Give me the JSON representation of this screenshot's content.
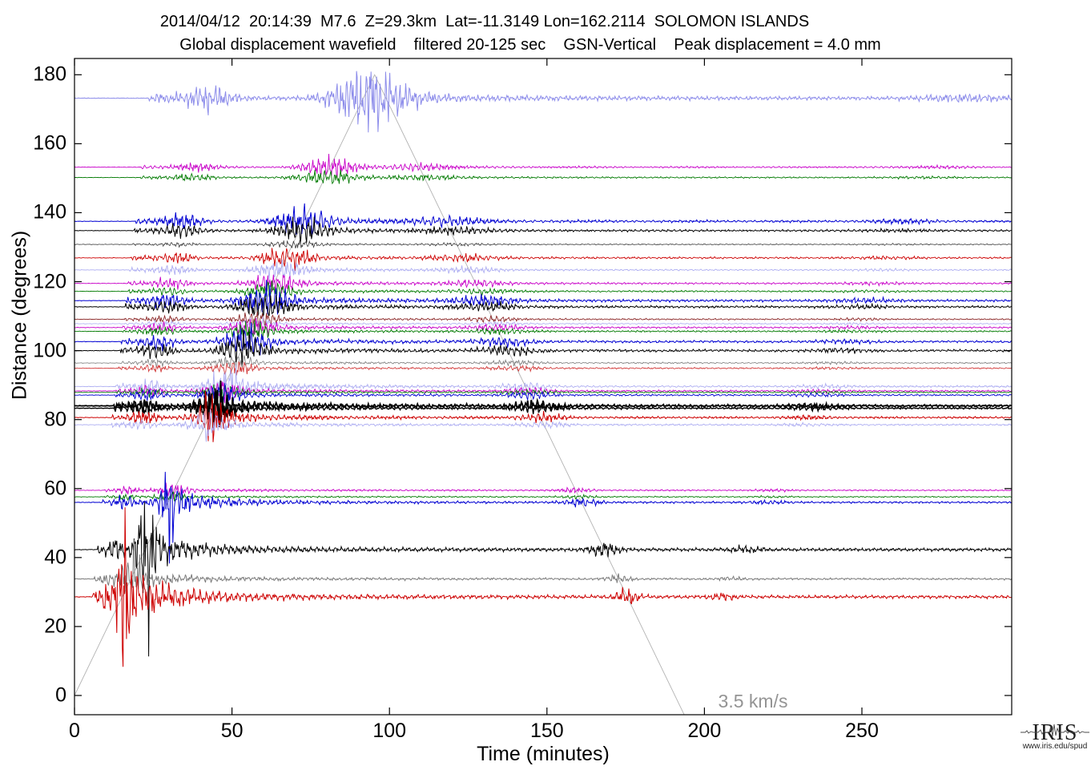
{
  "title": {
    "line1": "2014/04/12  20:14:39  M7.6  Z=29.3km  Lat=-11.3149 Lon=162.2114  SOLOMON ISLANDS",
    "line2": "Global displacement wavefield    filtered 20-125 sec    GSN-Vertical    Peak displacement = 4.0 mm"
  },
  "event": {
    "date": "2014/04/12",
    "time": "20:14:39",
    "magnitude": "M7.6",
    "depth": "Z=29.3km",
    "latitude": "Lat=-11.3149",
    "longitude": "Lon=162.2114",
    "region": "SOLOMON ISLANDS",
    "wavefield": "Global displacement wavefield",
    "filter": "filtered 20-125 sec",
    "component": "GSN-Vertical",
    "peak_displacement": "Peak displacement = 4.0 mm"
  },
  "axes": {
    "x": {
      "label": "Time (minutes)",
      "ticks": [
        0,
        50,
        100,
        150,
        200,
        250
      ],
      "min": 0,
      "max": 297.5
    },
    "y": {
      "label": "Distance (degrees)",
      "ticks": [
        0,
        20,
        40,
        60,
        80,
        100,
        120,
        140,
        160,
        180
      ],
      "min": -5.6,
      "max": 184.7
    }
  },
  "annotations": {
    "moveout_label": "3.5 km/s",
    "moveout_velocity_km_s": 3.5,
    "moveout_color": "#b3b3b3"
  },
  "branding": {
    "logo_text": "IRIS",
    "logo_url_text": "www.iris.edu/spud"
  },
  "chart_data": {
    "type": "line",
    "subtype": "seismic-record-section",
    "title": "Global displacement wavefield, filtered 20-125 sec, GSN-Vertical, Peak displacement = 4.0 mm",
    "xlabel": "Time (minutes)",
    "ylabel": "Distance (degrees)",
    "xlim": [
      0,
      297.5
    ],
    "ylim": [
      -5.6,
      184.7
    ],
    "grid": false,
    "legend": "none",
    "moveout_line": {
      "velocity_km_s": 3.5,
      "label": "3.5 km/s",
      "vertices_time_distance": [
        [
          0,
          0
        ],
        [
          95.3,
          180
        ],
        [
          193.6,
          -5.6
        ]
      ]
    },
    "traces": [
      {
        "distance_deg": 173.2,
        "color": "#8c8cea",
        "amp": 32,
        "lw": 1.0,
        "spike": 0,
        "sw": 0
      },
      {
        "distance_deg": 153.2,
        "color": "#c800c8",
        "amp": 11,
        "lw": 0.9,
        "spike": 0,
        "sw": 0
      },
      {
        "distance_deg": 150.2,
        "color": "#007a00",
        "amp": 9,
        "lw": 0.9,
        "spike": 0,
        "sw": 0
      },
      {
        "distance_deg": 137.5,
        "color": "#0000d2",
        "amp": 18,
        "lw": 1.0,
        "spike": 0,
        "sw": 0
      },
      {
        "distance_deg": 134.8,
        "color": "#000000",
        "amp": 15,
        "lw": 1.0,
        "spike": 0,
        "sw": 0
      },
      {
        "distance_deg": 130.8,
        "color": "#3c3c3c",
        "amp": 5,
        "lw": 0.8,
        "spike": 0,
        "sw": 0
      },
      {
        "distance_deg": 126.9,
        "color": "#cd0000",
        "amp": 13,
        "lw": 0.9,
        "spike": 0,
        "sw": 0
      },
      {
        "distance_deg": 123.4,
        "color": "#aeaef2",
        "amp": 11,
        "lw": 0.9,
        "spike": 0,
        "sw": 0
      },
      {
        "distance_deg": 119.5,
        "color": "#c800c8",
        "amp": 13,
        "lw": 0.9,
        "spike": 0,
        "sw": 0
      },
      {
        "distance_deg": 117.2,
        "color": "#007a00",
        "amp": 11,
        "lw": 0.9,
        "spike": 0,
        "sw": 0
      },
      {
        "distance_deg": 114.5,
        "color": "#0000d2",
        "amp": 20,
        "lw": 1.0,
        "spike": 0,
        "sw": 0
      },
      {
        "distance_deg": 112.7,
        "color": "#000000",
        "amp": 17,
        "lw": 1.0,
        "spike": 0,
        "sw": 0
      },
      {
        "distance_deg": 109.1,
        "color": "#8c2828",
        "amp": 9,
        "lw": 0.9,
        "spike": 0,
        "sw": 0
      },
      {
        "distance_deg": 107.8,
        "color": "#aeaef2",
        "amp": 7,
        "lw": 0.8,
        "spike": 0,
        "sw": 0
      },
      {
        "distance_deg": 106.7,
        "color": "#c800c8",
        "amp": 12,
        "lw": 0.9,
        "spike": 0,
        "sw": 0
      },
      {
        "distance_deg": 105.6,
        "color": "#007a00",
        "amp": 11,
        "lw": 0.9,
        "spike": 0,
        "sw": 0
      },
      {
        "distance_deg": 102.6,
        "color": "#0000d2",
        "amp": 18,
        "lw": 1.0,
        "spike": 0,
        "sw": 0
      },
      {
        "distance_deg": 100.0,
        "color": "#000000",
        "amp": 20,
        "lw": 1.0,
        "spike": 0,
        "sw": 0
      },
      {
        "distance_deg": 96.4,
        "color": "#7a7a7a",
        "amp": 9,
        "lw": 0.8,
        "spike": 0,
        "sw": 0
      },
      {
        "distance_deg": 94.9,
        "color": "#d23c3c",
        "amp": 9,
        "lw": 0.9,
        "spike": 0,
        "sw": 0
      },
      {
        "distance_deg": 89.6,
        "color": "#aeaef2",
        "amp": 16,
        "lw": 0.9,
        "spike": 24,
        "sw": 2.5
      },
      {
        "distance_deg": 88.3,
        "color": "#c800c8",
        "amp": 13,
        "lw": 0.9,
        "spike": 0,
        "sw": 0
      },
      {
        "distance_deg": 87.9,
        "color": "#007a00",
        "amp": 10,
        "lw": 0.8,
        "spike": 0,
        "sw": 0
      },
      {
        "distance_deg": 87.1,
        "color": "#0000d2",
        "amp": 13,
        "lw": 0.9,
        "spike": 0,
        "sw": 0
      },
      {
        "distance_deg": 84.0,
        "color": "#000000",
        "amp": 18,
        "lw": 1.8,
        "spike": 24,
        "sw": 2.2
      },
      {
        "distance_deg": 83.3,
        "color": "#000000",
        "amp": 15,
        "lw": 1.4,
        "spike": 18,
        "sw": 2.2
      },
      {
        "distance_deg": 80.6,
        "color": "#cd0000",
        "amp": 17,
        "lw": 1.0,
        "spike": 30,
        "sw": 2.0
      },
      {
        "distance_deg": 78.5,
        "color": "#aeaef2",
        "amp": 13,
        "lw": 0.9,
        "spike": 16,
        "sw": 2.0
      },
      {
        "distance_deg": 59.5,
        "color": "#c800c8",
        "amp": 9,
        "lw": 0.9,
        "spike": 0,
        "sw": 0
      },
      {
        "distance_deg": 57.6,
        "color": "#007a00",
        "amp": 7,
        "lw": 0.9,
        "spike": 0,
        "sw": 0
      },
      {
        "distance_deg": 56.0,
        "color": "#0000d2",
        "amp": 16,
        "lw": 1.0,
        "spike": 55,
        "sw": 2.0
      },
      {
        "distance_deg": 42.3,
        "color": "#000000",
        "amp": 28,
        "lw": 1.0,
        "spike": 78,
        "sw": 2.6
      },
      {
        "distance_deg": 33.8,
        "color": "#7a7a7a",
        "amp": 16,
        "lw": 1.0,
        "spike": 30,
        "sw": 3.0
      },
      {
        "distance_deg": 28.6,
        "color": "#cd0000",
        "amp": 32,
        "lw": 1.0,
        "spike": 140,
        "sw": 1.3
      }
    ]
  }
}
